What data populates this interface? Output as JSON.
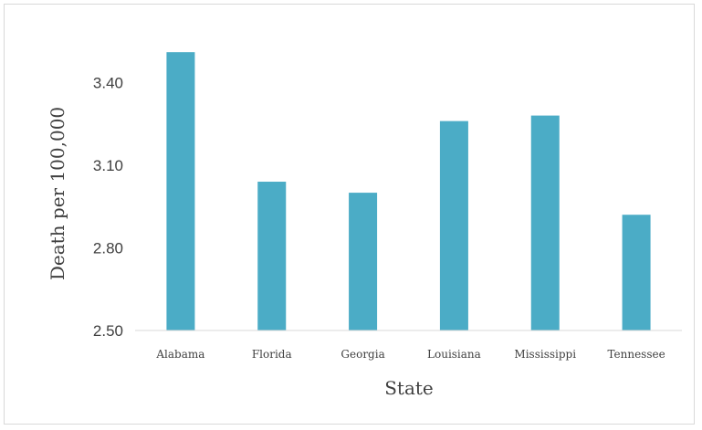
{
  "chart_data": {
    "type": "bar",
    "title": "",
    "xlabel": "State",
    "ylabel": "Death per 100,000",
    "categories": [
      "Alabama",
      "Florida",
      "Georgia",
      "Louisiana",
      "Mississippi",
      "Tennessee"
    ],
    "values": [
      3.51,
      3.04,
      3.0,
      3.26,
      3.28,
      2.92
    ],
    "ylim": [
      2.5,
      3.6
    ],
    "yticks": [
      2.5,
      2.8,
      3.1,
      3.4
    ],
    "ytick_labels": [
      "2.50",
      "2.80",
      "3.10",
      "3.40"
    ],
    "grid": false,
    "legend": "none",
    "bar_color": "#4BACC6"
  }
}
